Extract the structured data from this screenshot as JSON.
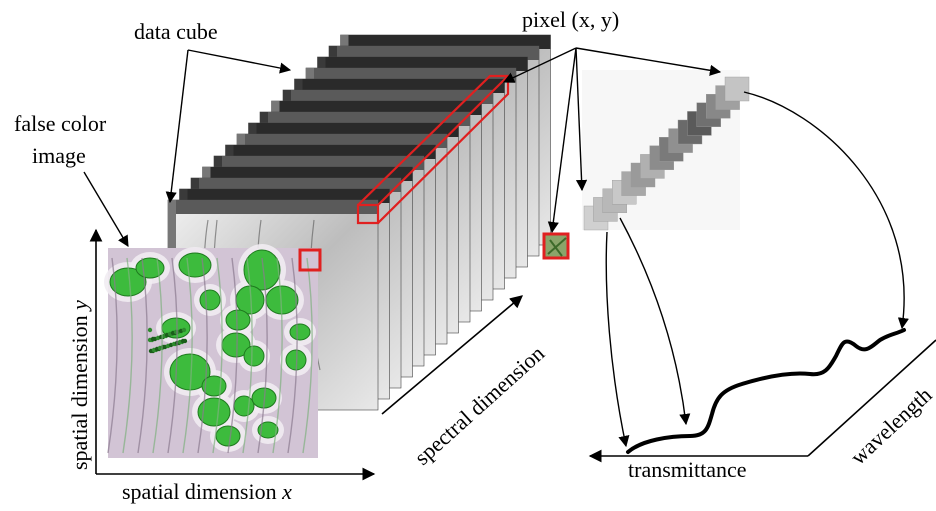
{
  "labels": {
    "data_cube": "data cube",
    "pixel": "pixel (x, y)",
    "false_color_line1": "false color",
    "false_color_line2": "image",
    "spatial_y_prefix": "spatial dimension ",
    "spatial_y_var": "y",
    "spatial_x_prefix": "spatial dimension ",
    "spatial_x_var": "x",
    "spectral": "spectral dimension",
    "transmittance": "transmittance",
    "wavelength": "wavelength"
  },
  "colors": {
    "highlight": "#e02020",
    "stain_green": "#3dbb3d",
    "line": "#000000"
  }
}
